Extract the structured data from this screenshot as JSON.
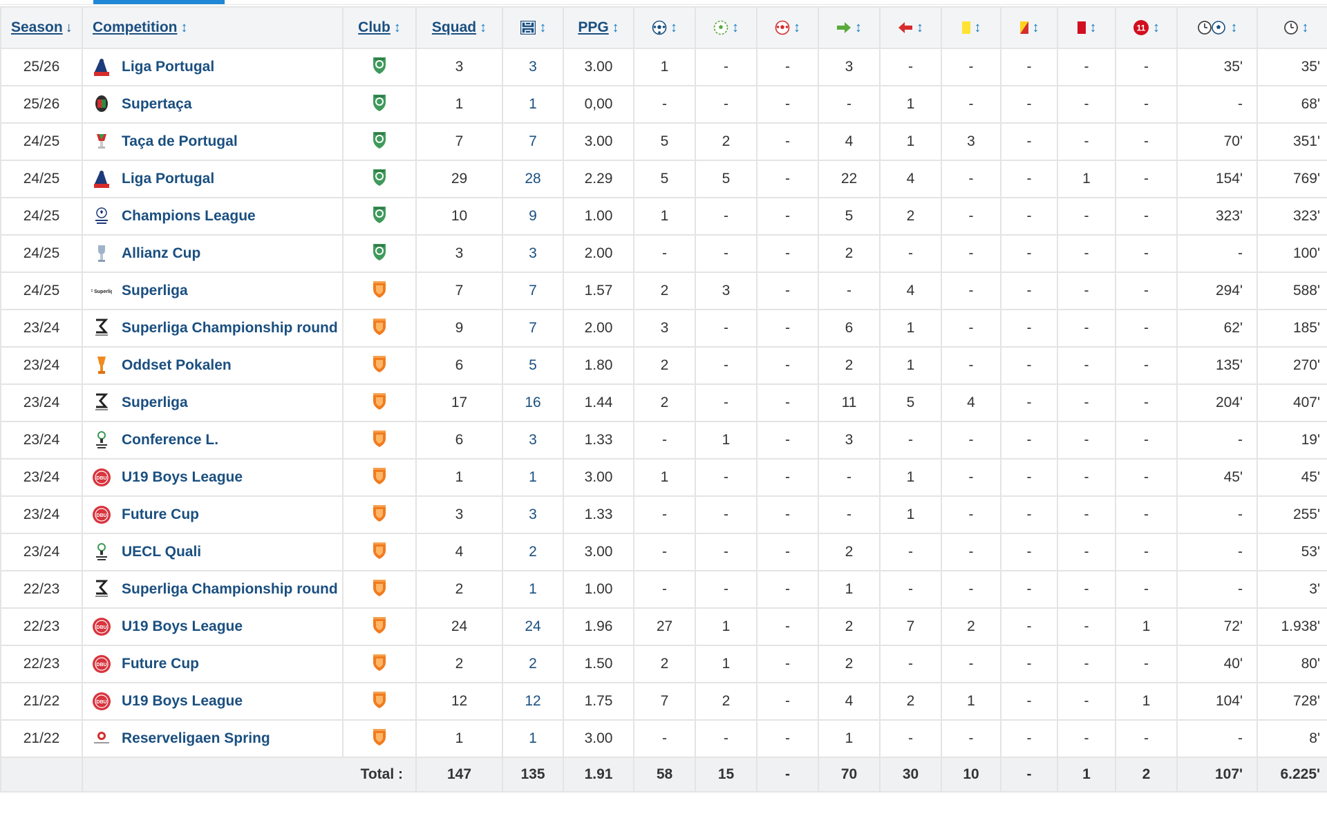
{
  "columns": {
    "season": "Season",
    "competition": "Competition",
    "club": "Club",
    "squad": "Squad",
    "ppg": "PPG"
  },
  "colors": {
    "link": "#1a4f80",
    "sort": "#1a7fc4",
    "sporting": "#3f9a5b",
    "nordsjaelland": "#f07c1e",
    "header_bg": "#f3f4f6",
    "total_bg": "#f0f1f3"
  },
  "header_icons": [
    "appearances-icon",
    "goals-icon",
    "assists-icon",
    "own-goals-icon",
    "substituted-on-icon",
    "substituted-off-icon",
    "yellow-card-icon",
    "second-yellow-icon",
    "red-card-icon",
    "penalty-goals-icon",
    "minutes-per-goal-icon",
    "minutes-played-icon"
  ],
  "rows": [
    {
      "season": "25/26",
      "competition": "Liga Portugal",
      "logo": "liga-portugal",
      "club": "sporting",
      "squad": "3",
      "apps": "3",
      "ppg": "3.00",
      "goals": "1",
      "assists": "-",
      "own_goals": "-",
      "sub_on": "3",
      "sub_off": "-",
      "yellow": "-",
      "second_yellow": "-",
      "red": "-",
      "penalty": "-",
      "min_per_goal": "35'",
      "minutes": "35'"
    },
    {
      "season": "25/26",
      "competition": "Supertaça",
      "logo": "supertaca",
      "club": "sporting",
      "squad": "1",
      "apps": "1",
      "ppg": "0,00",
      "goals": "-",
      "assists": "-",
      "own_goals": "-",
      "sub_on": "-",
      "sub_off": "1",
      "yellow": "-",
      "second_yellow": "-",
      "red": "-",
      "penalty": "-",
      "min_per_goal": "-",
      "minutes": "68'"
    },
    {
      "season": "24/25",
      "competition": "Taça de Portugal",
      "logo": "taca",
      "club": "sporting",
      "squad": "7",
      "apps": "7",
      "ppg": "3.00",
      "goals": "5",
      "assists": "2",
      "own_goals": "-",
      "sub_on": "4",
      "sub_off": "1",
      "yellow": "3",
      "second_yellow": "-",
      "red": "-",
      "penalty": "-",
      "min_per_goal": "70'",
      "minutes": "351'"
    },
    {
      "season": "24/25",
      "competition": "Liga Portugal",
      "logo": "liga-portugal",
      "club": "sporting",
      "squad": "29",
      "apps": "28",
      "ppg": "2.29",
      "goals": "5",
      "assists": "5",
      "own_goals": "-",
      "sub_on": "22",
      "sub_off": "4",
      "yellow": "-",
      "second_yellow": "-",
      "red": "1",
      "penalty": "-",
      "min_per_goal": "154'",
      "minutes": "769'"
    },
    {
      "season": "24/25",
      "competition": "Champions League",
      "logo": "champions-league",
      "club": "sporting",
      "squad": "10",
      "apps": "9",
      "ppg": "1.00",
      "goals": "1",
      "assists": "-",
      "own_goals": "-",
      "sub_on": "5",
      "sub_off": "2",
      "yellow": "-",
      "second_yellow": "-",
      "red": "-",
      "penalty": "-",
      "min_per_goal": "323'",
      "minutes": "323'"
    },
    {
      "season": "24/25",
      "competition": "Allianz Cup",
      "logo": "allianz-cup",
      "club": "sporting",
      "squad": "3",
      "apps": "3",
      "ppg": "2.00",
      "goals": "-",
      "assists": "-",
      "own_goals": "-",
      "sub_on": "2",
      "sub_off": "-",
      "yellow": "-",
      "second_yellow": "-",
      "red": "-",
      "penalty": "-",
      "min_per_goal": "-",
      "minutes": "100'"
    },
    {
      "season": "24/25",
      "competition": "Superliga",
      "logo": "superliga-new",
      "club": "nordsjaelland",
      "squad": "7",
      "apps": "7",
      "ppg": "1.57",
      "goals": "2",
      "assists": "3",
      "own_goals": "-",
      "sub_on": "-",
      "sub_off": "4",
      "yellow": "-",
      "second_yellow": "-",
      "red": "-",
      "penalty": "-",
      "min_per_goal": "294'",
      "minutes": "588'"
    },
    {
      "season": "23/24",
      "competition": "Superliga Championship round",
      "logo": "superliga",
      "club": "nordsjaelland",
      "squad": "9",
      "apps": "7",
      "ppg": "2.00",
      "goals": "3",
      "assists": "-",
      "own_goals": "-",
      "sub_on": "6",
      "sub_off": "1",
      "yellow": "-",
      "second_yellow": "-",
      "red": "-",
      "penalty": "-",
      "min_per_goal": "62'",
      "minutes": "185'"
    },
    {
      "season": "23/24",
      "competition": "Oddset Pokalen",
      "logo": "pokalen",
      "club": "nordsjaelland",
      "squad": "6",
      "apps": "5",
      "ppg": "1.80",
      "goals": "2",
      "assists": "-",
      "own_goals": "-",
      "sub_on": "2",
      "sub_off": "1",
      "yellow": "-",
      "second_yellow": "-",
      "red": "-",
      "penalty": "-",
      "min_per_goal": "135'",
      "minutes": "270'"
    },
    {
      "season": "23/24",
      "competition": "Superliga",
      "logo": "superliga",
      "club": "nordsjaelland",
      "squad": "17",
      "apps": "16",
      "ppg": "1.44",
      "goals": "2",
      "assists": "-",
      "own_goals": "-",
      "sub_on": "11",
      "sub_off": "5",
      "yellow": "4",
      "second_yellow": "-",
      "red": "-",
      "penalty": "-",
      "min_per_goal": "204'",
      "minutes": "407'"
    },
    {
      "season": "23/24",
      "competition": "Conference L.",
      "logo": "conference-league",
      "club": "nordsjaelland",
      "squad": "6",
      "apps": "3",
      "ppg": "1.33",
      "goals": "-",
      "assists": "1",
      "own_goals": "-",
      "sub_on": "3",
      "sub_off": "-",
      "yellow": "-",
      "second_yellow": "-",
      "red": "-",
      "penalty": "-",
      "min_per_goal": "-",
      "minutes": "19'"
    },
    {
      "season": "23/24",
      "competition": "U19 Boys League",
      "logo": "dbu",
      "club": "nordsjaelland",
      "squad": "1",
      "apps": "1",
      "ppg": "3.00",
      "goals": "1",
      "assists": "-",
      "own_goals": "-",
      "sub_on": "-",
      "sub_off": "1",
      "yellow": "-",
      "second_yellow": "-",
      "red": "-",
      "penalty": "-",
      "min_per_goal": "45'",
      "minutes": "45'"
    },
    {
      "season": "23/24",
      "competition": "Future Cup",
      "logo": "dbu",
      "club": "nordsjaelland",
      "squad": "3",
      "apps": "3",
      "ppg": "1.33",
      "goals": "-",
      "assists": "-",
      "own_goals": "-",
      "sub_on": "-",
      "sub_off": "1",
      "yellow": "-",
      "second_yellow": "-",
      "red": "-",
      "penalty": "-",
      "min_per_goal": "-",
      "minutes": "255'"
    },
    {
      "season": "23/24",
      "competition": "UECL Quali",
      "logo": "conference-league",
      "club": "nordsjaelland",
      "squad": "4",
      "apps": "2",
      "ppg": "3.00",
      "goals": "-",
      "assists": "-",
      "own_goals": "-",
      "sub_on": "2",
      "sub_off": "-",
      "yellow": "-",
      "second_yellow": "-",
      "red": "-",
      "penalty": "-",
      "min_per_goal": "-",
      "minutes": "53'"
    },
    {
      "season": "22/23",
      "competition": "Superliga Championship round",
      "logo": "superliga",
      "club": "nordsjaelland",
      "squad": "2",
      "apps": "1",
      "ppg": "1.00",
      "goals": "-",
      "assists": "-",
      "own_goals": "-",
      "sub_on": "1",
      "sub_off": "-",
      "yellow": "-",
      "second_yellow": "-",
      "red": "-",
      "penalty": "-",
      "min_per_goal": "-",
      "minutes": "3'"
    },
    {
      "season": "22/23",
      "competition": "U19 Boys League",
      "logo": "dbu",
      "club": "nordsjaelland",
      "squad": "24",
      "apps": "24",
      "ppg": "1.96",
      "goals": "27",
      "assists": "1",
      "own_goals": "-",
      "sub_on": "2",
      "sub_off": "7",
      "yellow": "2",
      "second_yellow": "-",
      "red": "-",
      "penalty": "1",
      "min_per_goal": "72'",
      "minutes": "1.938'"
    },
    {
      "season": "22/23",
      "competition": "Future Cup",
      "logo": "dbu",
      "club": "nordsjaelland",
      "squad": "2",
      "apps": "2",
      "ppg": "1.50",
      "goals": "2",
      "assists": "1",
      "own_goals": "-",
      "sub_on": "2",
      "sub_off": "-",
      "yellow": "-",
      "second_yellow": "-",
      "red": "-",
      "penalty": "-",
      "min_per_goal": "40'",
      "minutes": "80'"
    },
    {
      "season": "21/22",
      "competition": "U19 Boys League",
      "logo": "dbu",
      "club": "nordsjaelland",
      "squad": "12",
      "apps": "12",
      "ppg": "1.75",
      "goals": "7",
      "assists": "2",
      "own_goals": "-",
      "sub_on": "4",
      "sub_off": "2",
      "yellow": "1",
      "second_yellow": "-",
      "red": "-",
      "penalty": "1",
      "min_per_goal": "104'",
      "minutes": "728'"
    },
    {
      "season": "21/22",
      "competition": "Reserveligaen Spring",
      "logo": "reserveligaen",
      "club": "nordsjaelland",
      "squad": "1",
      "apps": "1",
      "ppg": "3.00",
      "goals": "-",
      "assists": "-",
      "own_goals": "-",
      "sub_on": "1",
      "sub_off": "-",
      "yellow": "-",
      "second_yellow": "-",
      "red": "-",
      "penalty": "-",
      "min_per_goal": "-",
      "minutes": "8'"
    }
  ],
  "total": {
    "label": "Total :",
    "squad": "147",
    "apps": "135",
    "ppg": "1.91",
    "goals": "58",
    "assists": "15",
    "own_goals": "-",
    "sub_on": "70",
    "sub_off": "30",
    "yellow": "10",
    "second_yellow": "-",
    "red": "1",
    "penalty": "2",
    "min_per_goal": "107'",
    "minutes": "6.225'"
  }
}
